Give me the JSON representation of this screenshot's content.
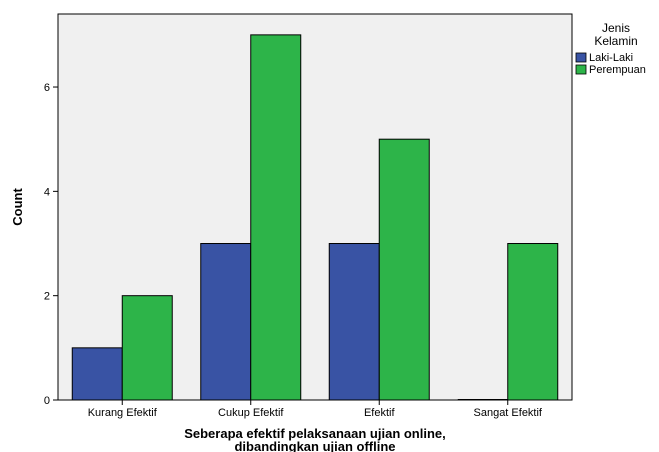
{
  "chart_data": {
    "type": "bar",
    "categories": [
      "Kurang Efektif",
      "Cukup Efektif",
      "Efektif",
      "Sangat Efektif"
    ],
    "series": [
      {
        "name": "Laki-Laki",
        "values": [
          1,
          3,
          3,
          0
        ],
        "color": "#3953a4"
      },
      {
        "name": "Perempuan",
        "values": [
          2,
          7,
          5,
          3
        ],
        "color": "#2db449"
      }
    ],
    "title": "",
    "xlabel_lines": [
      "Seberapa efektif pelaksanaan ujian online,",
      "dibandingkan ujian offline"
    ],
    "ylabel": "Count",
    "ylim": [
      0,
      7.4
    ],
    "yticks": [
      0,
      2,
      4,
      6
    ],
    "ytick_labels": [
      "0",
      "2",
      "4",
      "6"
    ],
    "grid": false,
    "plot_background": "#f0f0f0",
    "legend": {
      "title_lines": [
        "Jenis",
        "Kelamin"
      ],
      "placement": "right"
    }
  }
}
